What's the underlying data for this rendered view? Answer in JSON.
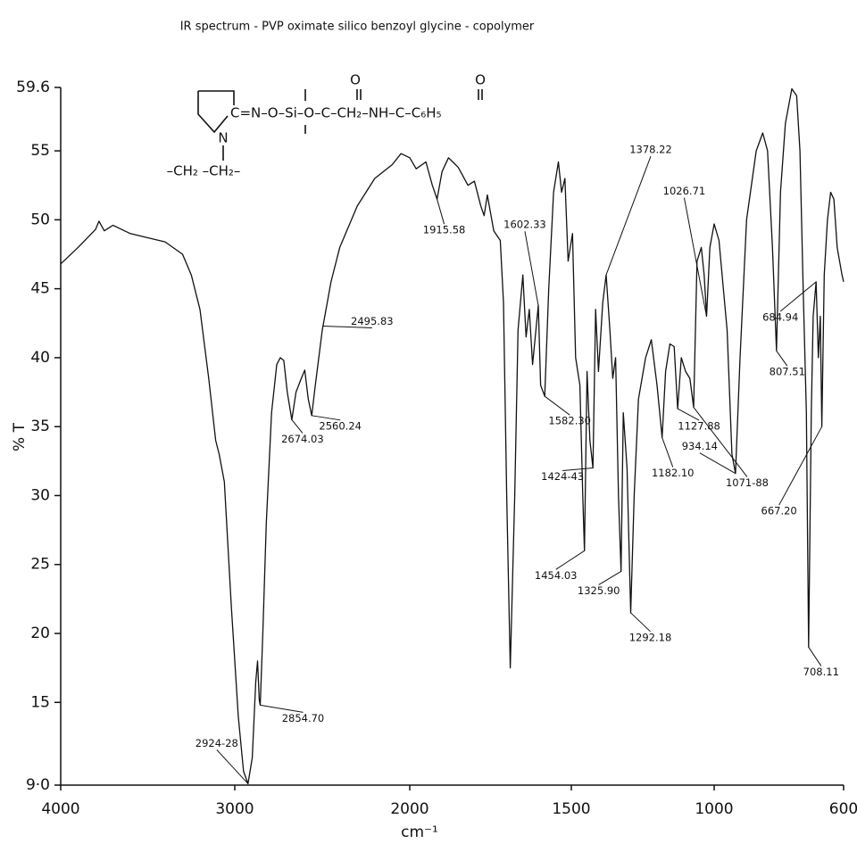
{
  "chart_data": {
    "type": "line",
    "title": "IR spectrum - PVP oximate silico benzoyl glycine - copolymer",
    "y_label": "% T",
    "x_label": "cm⁻¹",
    "color": "#111111",
    "grid": false,
    "xlim": [
      4000,
      600
    ],
    "xticks": [
      4000,
      3000,
      2000,
      1500,
      1000,
      600
    ],
    "ylim": [
      9,
      59.6
    ],
    "yticks": [
      {
        "value": 9,
        "label": "9·0"
      },
      15,
      20,
      25,
      30,
      35,
      40,
      45,
      50,
      55,
      59.6
    ],
    "structure": {
      "carbonyl_1": "O",
      "carbonyl_2": "O",
      "chain": "C=N–O–Si–O–C–CH₂–NH–C–C₆H₅",
      "nitrogen": "N",
      "backbone": "–CH₂ –CH₂–"
    },
    "x": [
      4000,
      3900,
      3800,
      3780,
      3750,
      3700,
      3600,
      3500,
      3400,
      3300,
      3250,
      3200,
      3150,
      3110,
      3090,
      3060,
      3020,
      2980,
      2950,
      2924.28,
      2900,
      2880,
      2870,
      2860,
      2854.7,
      2840,
      2820,
      2790,
      2760,
      2740,
      2720,
      2700,
      2674.03,
      2650,
      2620,
      2600,
      2580,
      2560.24,
      2540,
      2500,
      2450,
      2400,
      2300,
      2200,
      2100,
      2050,
      2000,
      1980,
      1950,
      1930,
      1915.58,
      1900,
      1880,
      1850,
      1820,
      1800,
      1780,
      1770,
      1760,
      1740,
      1720,
      1710,
      1700,
      1688.96,
      1675,
      1665,
      1650,
      1640,
      1630,
      1620,
      1602.33,
      1595,
      1582.3,
      1570,
      1555,
      1540,
      1530,
      1520,
      1510,
      1495.83,
      1485,
      1470,
      1460,
      1454.03,
      1445,
      1435,
      1424.43,
      1415,
      1405,
      1390,
      1378.22,
      1365,
      1355,
      1345,
      1335,
      1325.9,
      1318,
      1305,
      1292.18,
      1280,
      1265,
      1240,
      1220,
      1200,
      1182.1,
      1170,
      1155,
      1140,
      1127.88,
      1115,
      1100,
      1085,
      1071.88,
      1060,
      1045,
      1035,
      1026.71,
      1015,
      1000,
      985,
      960,
      945,
      934.14,
      920,
      900,
      870,
      850,
      835,
      820,
      807.51,
      795,
      780,
      760,
      745,
      735,
      725,
      715,
      708.11,
      700,
      694,
      684.94,
      678,
      672,
      667.2,
      660,
      650,
      640,
      630,
      620,
      605,
      600
    ],
    "values": [
      46.8,
      48.0,
      49.3,
      49.9,
      49.2,
      49.6,
      49.0,
      48.7,
      48.4,
      47.5,
      46,
      43.5,
      38.5,
      34,
      33,
      31,
      22,
      14,
      10,
      9.1,
      11,
      16.5,
      18,
      15.2,
      14.8,
      20,
      28,
      36,
      39.5,
      40,
      39.8,
      37.5,
      35.5,
      37.5,
      38.5,
      39.1,
      37,
      35.8,
      38,
      42,
      45.5,
      48,
      51,
      53,
      54,
      54.8,
      54.5,
      53.7,
      54.2,
      52.5,
      51.5,
      53.5,
      54.5,
      53.8,
      52.5,
      52.8,
      51,
      50.3,
      51.8,
      49.2,
      48.5,
      44,
      30,
      17.5,
      30,
      42,
      46,
      41.5,
      43.5,
      39.5,
      43.8,
      38,
      37.2,
      45,
      52,
      54.2,
      52,
      53,
      47,
      49,
      40,
      38,
      30,
      26,
      39,
      34,
      32,
      43.5,
      39,
      44,
      46,
      42,
      38.5,
      40,
      30,
      24.5,
      36,
      32,
      21.5,
      30,
      37,
      40,
      41.3,
      38,
      34.2,
      39,
      41,
      40.8,
      36.3,
      40,
      39,
      38.5,
      36.4,
      47,
      48,
      46,
      43,
      48,
      49.7,
      48.5,
      42,
      33,
      31.6,
      40,
      50,
      55,
      56.3,
      55,
      48,
      40.5,
      52,
      57,
      59.5,
      59,
      55,
      45,
      36,
      19,
      36,
      43,
      45.5,
      40,
      43,
      35,
      46,
      50,
      52,
      51.5,
      48,
      46,
      45.5
    ],
    "peaks": [
      {
        "value": 2924.28,
        "label": "2924-28"
      },
      {
        "value": 2854.7,
        "label": "2854.70"
      },
      {
        "value": 2674.03,
        "label": "2674.03"
      },
      {
        "value": 2560.24,
        "label": "2560.24"
      },
      {
        "value": 1915.58,
        "label": "1915.58"
      },
      {
        "value": 1602.33,
        "label": "1602.33"
      },
      {
        "value": 2495.83,
        "label": "2495.83"
      },
      {
        "value": 1582.3,
        "label": "1582.30"
      },
      {
        "value": 1378.22,
        "label": "1378.22"
      },
      {
        "value": 1454.03,
        "label": "1454.03"
      },
      {
        "value": 1424.43,
        "label": "1424-43"
      },
      {
        "value": 1325.9,
        "label": "1325.90"
      },
      {
        "value": 1292.18,
        "label": "1292.18"
      },
      {
        "value": 1182.1,
        "label": "1182.10"
      },
      {
        "value": 1127.88,
        "label": "1127.88"
      },
      {
        "value": 1071.88,
        "label": "1071-88"
      },
      {
        "value": 1026.71,
        "label": "1026.71"
      },
      {
        "value": 934.14,
        "label": "934.14"
      },
      {
        "value": 807.51,
        "label": "807.51"
      },
      {
        "value": 684.94,
        "label": "684.94"
      },
      {
        "value": 667.2,
        "label": "667.20"
      },
      {
        "value": 708.11,
        "label": "708.11"
      }
    ]
  }
}
